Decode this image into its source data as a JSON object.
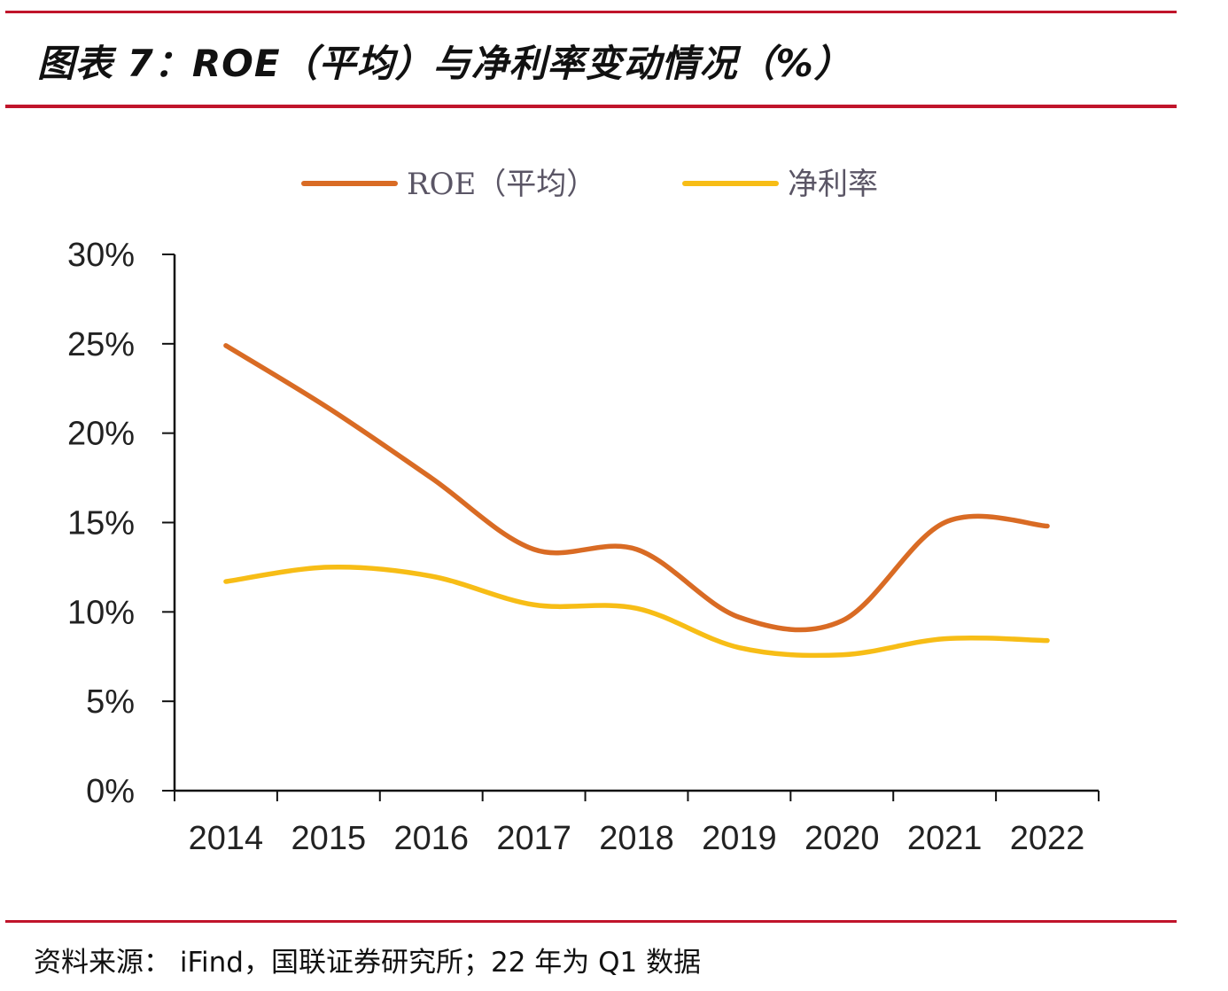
{
  "header": {
    "title": "图表 7：ROE（平均）与净利率变动情况（%）"
  },
  "footer": {
    "source": "资料来源： iFind，国联证券研究所；22 年为 Q1 数据"
  },
  "colors": {
    "rule": "#c0142b",
    "roe": "#d96b24",
    "net_margin": "#f7bd16"
  },
  "chart_data": {
    "type": "line",
    "title": "",
    "xlabel": "",
    "ylabel": "",
    "categories": [
      "2014",
      "2015",
      "2016",
      "2017",
      "2018",
      "2019",
      "2020",
      "2021",
      "2022"
    ],
    "ylim": [
      0,
      30
    ],
    "yticks": [
      "0%",
      "5%",
      "10%",
      "15%",
      "20%",
      "25%",
      "30%"
    ],
    "ytick_values": [
      0,
      5,
      10,
      15,
      20,
      25,
      30
    ],
    "grid": false,
    "legend_position": "top",
    "smooth": true,
    "series": [
      {
        "name": "ROE（平均）",
        "color": "#d96b24",
        "values": [
          24.9,
          21.4,
          17.5,
          13.5,
          13.5,
          9.7,
          9.5,
          15.0,
          14.8
        ]
      },
      {
        "name": "净利率",
        "color": "#f7bd16",
        "values": [
          11.7,
          12.5,
          12.0,
          10.4,
          10.2,
          8.0,
          7.6,
          8.5,
          8.4
        ]
      }
    ]
  }
}
